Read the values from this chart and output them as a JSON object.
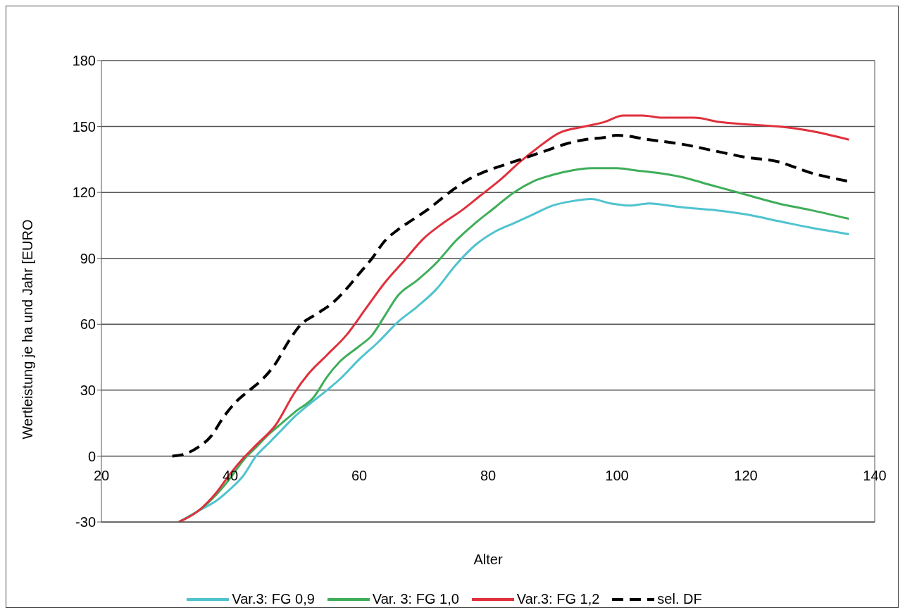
{
  "chart_data": {
    "type": "line",
    "xlabel": "Alter",
    "ylabel": "Wertleistung je ha und Jahr [EURO",
    "xlim": [
      20,
      140
    ],
    "xticks": [
      20,
      40,
      60,
      80,
      100,
      120,
      140
    ],
    "ylim": [
      -30,
      180
    ],
    "yticks": [
      -30,
      0,
      30,
      60,
      90,
      120,
      150,
      180
    ],
    "grid": "y",
    "legend": "bottom",
    "marker": "none",
    "series": [
      {
        "name": "Var.3: FG 0,9",
        "color": "#4fc3cf",
        "line_style": "solid",
        "x": [
          32,
          35,
          38,
          40,
          42,
          44,
          46,
          48,
          50,
          52,
          55,
          57,
          60,
          63,
          66,
          69,
          72,
          75,
          78,
          81,
          84,
          87,
          90,
          93,
          96,
          99,
          102,
          105,
          108,
          111,
          115,
          120,
          125,
          130,
          136
        ],
        "values": [
          -30,
          -25,
          -20,
          -15,
          -9,
          0,
          6,
          12,
          18,
          23,
          30,
          35,
          44,
          52,
          61,
          68,
          76,
          87,
          96,
          102,
          106,
          110,
          114,
          116,
          117,
          115,
          114,
          115,
          114,
          113,
          112,
          110,
          107,
          104,
          101
        ]
      },
      {
        "name": "Var. 3: FG 1,0",
        "color": "#3fae5a",
        "line_style": "solid",
        "x": [
          32,
          35,
          38,
          40,
          42,
          44,
          46,
          48,
          50,
          53,
          55,
          57,
          60,
          62,
          64,
          66,
          69,
          72,
          75,
          78,
          81,
          84,
          87,
          90,
          93,
          96,
          100,
          103,
          106,
          110,
          115,
          120,
          125,
          130,
          136
        ],
        "values": [
          -30,
          -25,
          -17,
          -10,
          -2,
          4,
          10,
          15,
          20,
          27,
          36,
          43,
          50,
          55,
          64,
          73,
          80,
          88,
          98,
          106,
          113,
          120,
          125,
          128,
          130,
          131,
          131,
          130,
          129,
          127,
          123,
          119,
          115,
          112,
          108
        ]
      },
      {
        "name": "Var.3: FG 1,2",
        "color": "#e0303c",
        "line_style": "solid",
        "x": [
          32,
          35,
          38,
          40,
          42,
          44,
          47,
          50,
          52,
          55,
          58,
          61,
          64,
          67,
          70,
          73,
          76,
          79,
          82,
          85,
          88,
          91,
          95,
          98,
          101,
          104,
          107,
          112,
          116,
          120,
          125,
          130,
          136
        ],
        "values": [
          -30,
          -25,
          -16,
          -8,
          -1,
          5,
          14,
          29,
          37,
          46,
          55,
          67,
          79,
          89,
          99,
          106,
          112,
          119,
          126,
          134,
          141,
          147,
          150,
          152,
          155,
          155,
          154,
          154,
          152,
          151,
          150,
          148,
          144
        ]
      },
      {
        "name": "sel. DF",
        "color": "#000000",
        "line_style": "dashed",
        "x": [
          31,
          33,
          35,
          37,
          39,
          41,
          43,
          45,
          47,
          49,
          51,
          53,
          56,
          58,
          60,
          62,
          64,
          66,
          68,
          71,
          74,
          77,
          80,
          83,
          86,
          89,
          92,
          95,
          98,
          100,
          105,
          110,
          115,
          120,
          125,
          130,
          136
        ],
        "values": [
          0,
          1,
          4,
          9,
          18,
          25,
          30,
          35,
          42,
          52,
          60,
          64,
          70,
          76,
          83,
          90,
          98,
          103,
          107,
          113,
          120,
          126,
          130,
          133,
          136,
          139,
          142,
          144,
          145,
          146,
          144,
          142,
          139,
          136,
          134,
          129,
          125
        ]
      }
    ]
  }
}
